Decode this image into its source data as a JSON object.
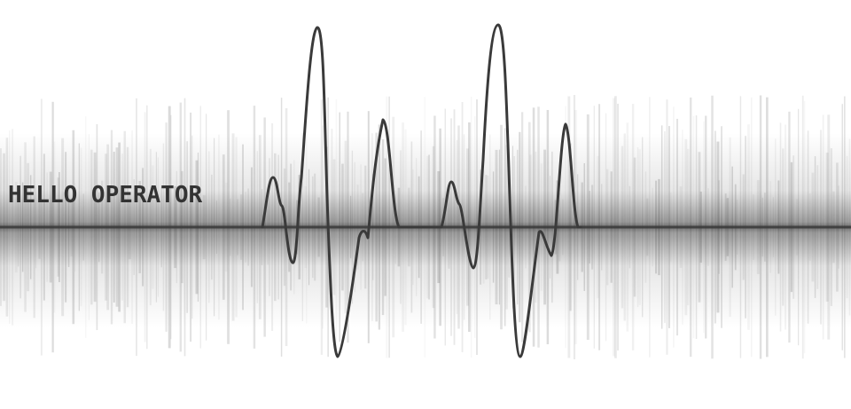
{
  "title": "HELLO OPERATOR",
  "colors": {
    "background": "#ffffff",
    "wave": "#3a3a3a",
    "text": "#333333"
  }
}
